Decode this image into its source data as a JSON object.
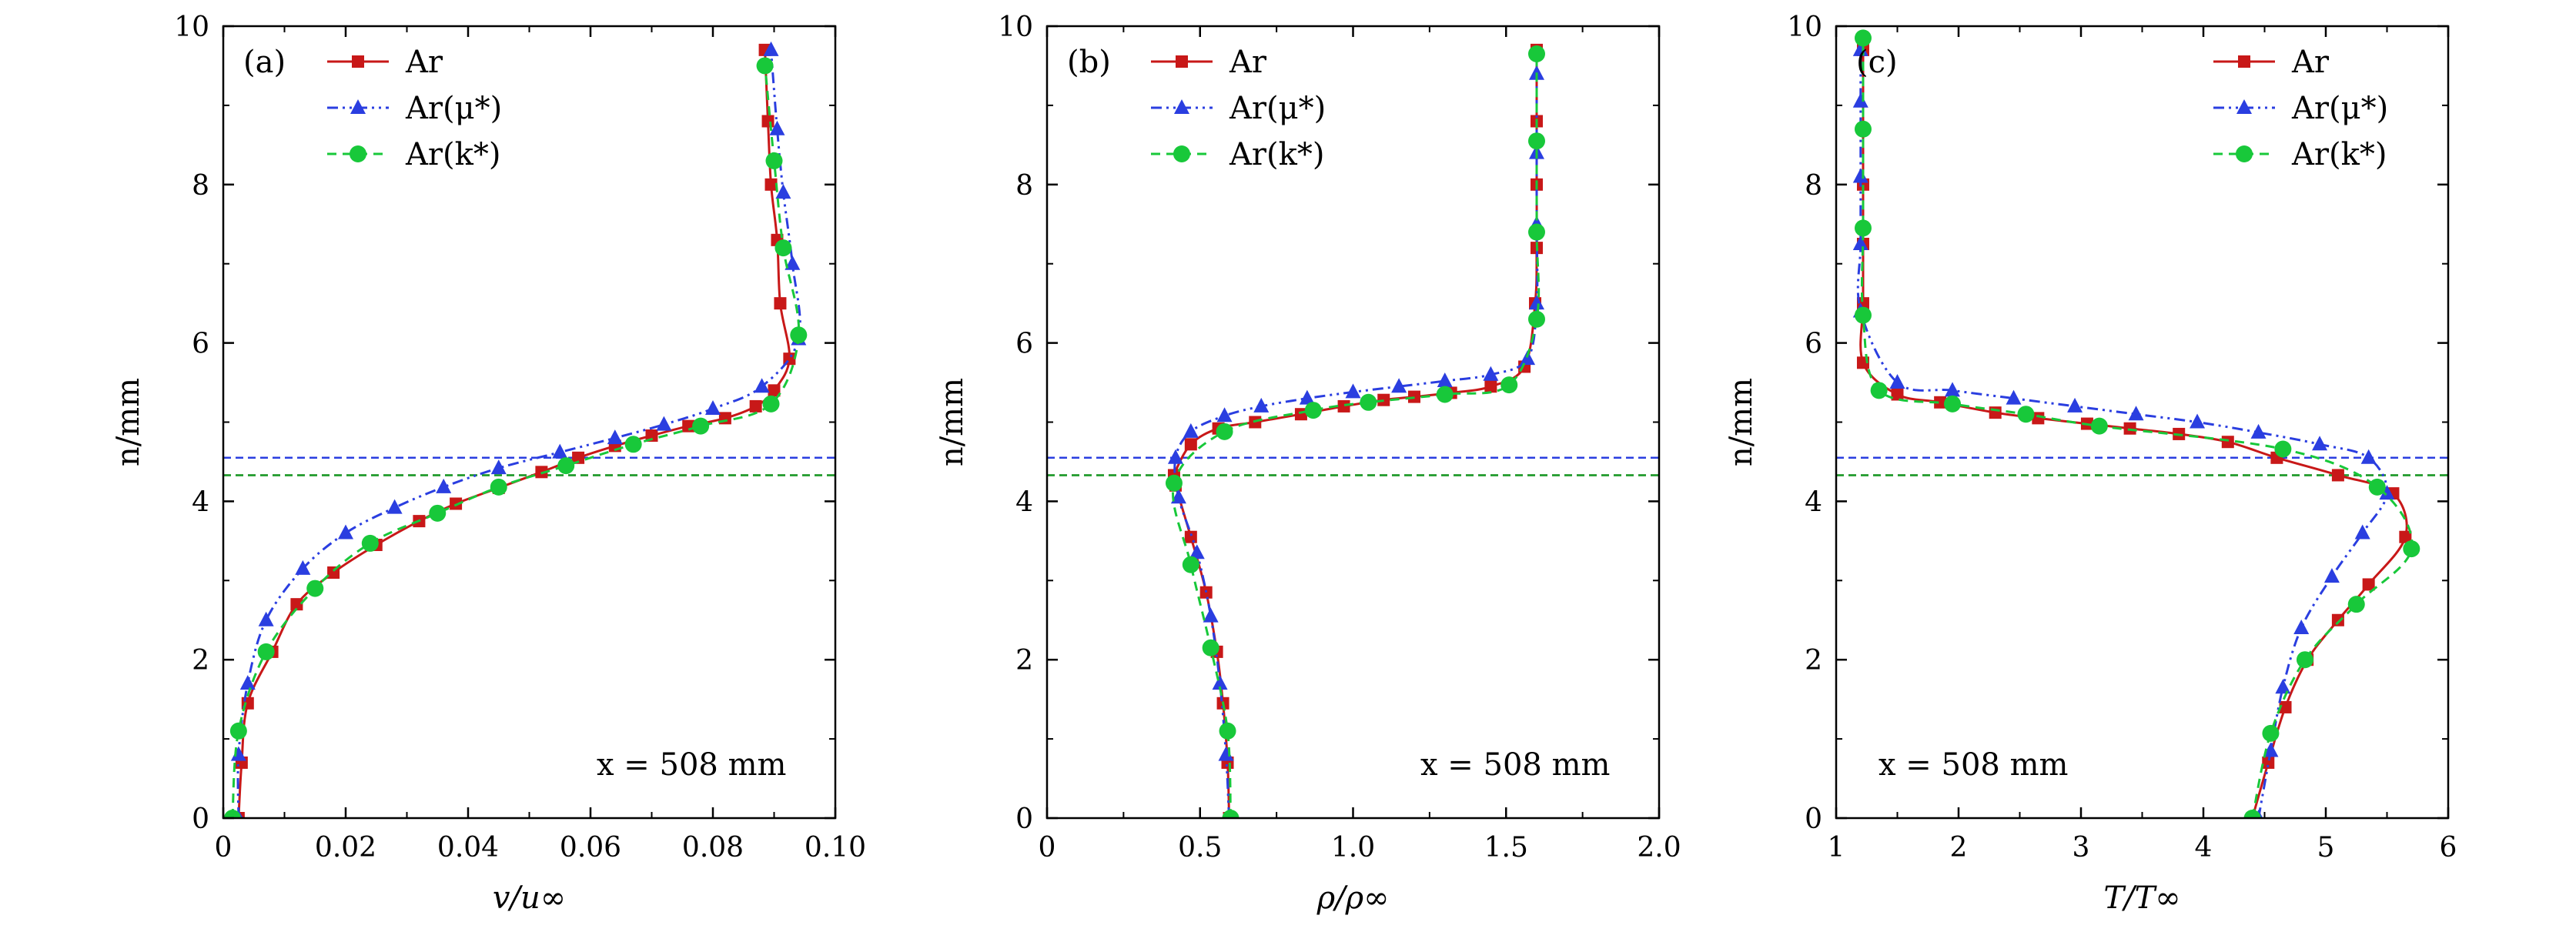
{
  "colors": {
    "ar": "#c81818",
    "ar_mu": "#2a3ee0",
    "ar_k": "#18c83a",
    "shock_ar": "#8a5a00",
    "shock_ar_k": "#18a030",
    "shock_ar_mu": "#2a3ee0"
  },
  "chart_data": [
    {
      "type": "line",
      "panel_label": "(a)",
      "xlabel": "v/u∞",
      "ylabel": "n/mm",
      "xlim": [
        0,
        0.1
      ],
      "ylim": [
        0,
        10
      ],
      "xticks": [
        0,
        0.02,
        0.04,
        0.06,
        0.08,
        0.1
      ],
      "xtick_labels": [
        "0",
        "0.02",
        "0.04",
        "0.06",
        "0.08",
        "0.10"
      ],
      "yticks": [
        0,
        2,
        4,
        6,
        8,
        10
      ],
      "ytick_labels": [
        "0",
        "2",
        "4",
        "6",
        "8",
        "10"
      ],
      "annotation": "x = 508 mm",
      "legend_position": "top-left",
      "shock_lines": [
        {
          "series": "Ar(μ*)",
          "y": 4.55
        },
        {
          "series": "Ar",
          "y": 4.33
        },
        {
          "series": "Ar(k*)",
          "y": 4.33
        }
      ],
      "series": [
        {
          "name": "Ar",
          "marker": "square",
          "line": "solid",
          "x": [
            0.0025,
            0.003,
            0.004,
            0.008,
            0.012,
            0.018,
            0.025,
            0.032,
            0.038,
            0.045,
            0.052,
            0.058,
            0.064,
            0.07,
            0.076,
            0.082,
            0.087,
            0.09,
            0.0925,
            0.091,
            0.0905,
            0.0895,
            0.089,
            0.0885
          ],
          "y": [
            0.0,
            0.7,
            1.45,
            2.1,
            2.7,
            3.1,
            3.45,
            3.75,
            3.97,
            4.17,
            4.37,
            4.55,
            4.7,
            4.83,
            4.95,
            5.05,
            5.2,
            5.4,
            5.8,
            6.5,
            7.3,
            8.0,
            8.8,
            9.7
          ]
        },
        {
          "name": "Ar(μ*)",
          "marker": "triangle",
          "line": "dashdot",
          "x": [
            0.0025,
            0.0025,
            0.004,
            0.007,
            0.013,
            0.02,
            0.028,
            0.036,
            0.045,
            0.055,
            0.064,
            0.072,
            0.08,
            0.088,
            0.094,
            0.093,
            0.0915,
            0.0905,
            0.0895
          ],
          "y": [
            0.0,
            0.8,
            1.7,
            2.5,
            3.15,
            3.6,
            3.92,
            4.18,
            4.42,
            4.62,
            4.8,
            4.97,
            5.17,
            5.45,
            6.05,
            7.0,
            7.9,
            8.7,
            9.7
          ]
        },
        {
          "name": "Ar(k*)",
          "marker": "circle",
          "line": "dashed",
          "x": [
            0.0015,
            0.0025,
            0.007,
            0.015,
            0.024,
            0.035,
            0.045,
            0.056,
            0.067,
            0.078,
            0.0895,
            0.094,
            0.0915,
            0.09,
            0.0885
          ],
          "y": [
            0.0,
            1.1,
            2.1,
            2.9,
            3.47,
            3.85,
            4.18,
            4.45,
            4.72,
            4.95,
            5.23,
            6.1,
            7.2,
            8.3,
            9.5
          ]
        }
      ]
    },
    {
      "type": "line",
      "panel_label": "(b)",
      "xlabel": "ρ/ρ∞",
      "ylabel": "n/mm",
      "xlim": [
        0,
        2.0
      ],
      "ylim": [
        0,
        10
      ],
      "xticks": [
        0,
        0.5,
        1.0,
        1.5,
        2.0
      ],
      "xtick_labels": [
        "0",
        "0.5",
        "1.0",
        "1.5",
        "2.0"
      ],
      "yticks": [
        0,
        2,
        4,
        6,
        8,
        10
      ],
      "ytick_labels": [
        "0",
        "2",
        "4",
        "6",
        "8",
        "10"
      ],
      "annotation": "x = 508 mm",
      "legend_position": "top-left",
      "shock_lines": [
        {
          "series": "Ar(μ*)",
          "y": 4.55
        },
        {
          "series": "Ar",
          "y": 4.33
        },
        {
          "series": "Ar(k*)",
          "y": 4.33
        }
      ],
      "series": [
        {
          "name": "Ar",
          "marker": "square",
          "line": "solid",
          "x": [
            0.595,
            0.59,
            0.575,
            0.555,
            0.52,
            0.47,
            0.42,
            0.415,
            0.47,
            0.56,
            0.68,
            0.83,
            0.97,
            1.1,
            1.2,
            1.32,
            1.45,
            1.56,
            1.595,
            1.6,
            1.6,
            1.6,
            1.6
          ],
          "y": [
            0.0,
            0.7,
            1.45,
            2.1,
            2.85,
            3.55,
            4.2,
            4.33,
            4.72,
            4.92,
            5.0,
            5.1,
            5.2,
            5.28,
            5.32,
            5.37,
            5.45,
            5.7,
            6.5,
            7.2,
            8.0,
            8.8,
            9.7
          ]
        },
        {
          "name": "Ar(μ*)",
          "marker": "triangle",
          "line": "dashdot",
          "x": [
            0.595,
            0.585,
            0.565,
            0.535,
            0.49,
            0.43,
            0.42,
            0.47,
            0.58,
            0.7,
            0.85,
            1.0,
            1.15,
            1.3,
            1.45,
            1.57,
            1.6,
            1.6,
            1.6,
            1.6
          ],
          "y": [
            0.0,
            0.8,
            1.7,
            2.55,
            3.35,
            4.05,
            4.55,
            4.88,
            5.08,
            5.2,
            5.3,
            5.38,
            5.45,
            5.52,
            5.6,
            5.8,
            6.5,
            7.5,
            8.4,
            9.4
          ]
        },
        {
          "name": "Ar(k*)",
          "marker": "circle",
          "line": "dashed",
          "x": [
            0.6,
            0.59,
            0.535,
            0.47,
            0.415,
            0.58,
            0.87,
            1.05,
            1.3,
            1.51,
            1.6,
            1.6,
            1.6,
            1.6
          ],
          "y": [
            0.0,
            1.1,
            2.15,
            3.2,
            4.23,
            4.88,
            5.15,
            5.25,
            5.35,
            5.47,
            6.3,
            7.4,
            8.55,
            9.65
          ]
        }
      ]
    },
    {
      "type": "line",
      "panel_label": "(c)",
      "xlabel": "T/T∞",
      "ylabel": "n/mm",
      "xlim": [
        1,
        6
      ],
      "ylim": [
        0,
        10
      ],
      "xticks": [
        1,
        2,
        3,
        4,
        5,
        6
      ],
      "xtick_labels": [
        "1",
        "2",
        "3",
        "4",
        "5",
        "6"
      ],
      "yticks": [
        0,
        2,
        4,
        6,
        8,
        10
      ],
      "ytick_labels": [
        "0",
        "2",
        "4",
        "6",
        "8",
        "10"
      ],
      "annotation": "x = 508 mm",
      "legend_position": "top-right",
      "shock_lines": [
        {
          "series": "Ar(μ*)",
          "y": 4.55
        },
        {
          "series": "Ar",
          "y": 4.33
        },
        {
          "series": "Ar(k*)",
          "y": 4.33
        }
      ],
      "series": [
        {
          "name": "Ar",
          "marker": "square",
          "line": "solid",
          "x": [
            4.4,
            4.53,
            4.67,
            4.85,
            5.1,
            5.35,
            5.65,
            5.55,
            5.1,
            4.6,
            4.2,
            3.8,
            3.4,
            3.05,
            2.65,
            2.3,
            1.85,
            1.5,
            1.22,
            1.22,
            1.22,
            1.22,
            1.22
          ],
          "y": [
            0.0,
            0.7,
            1.4,
            2.0,
            2.5,
            2.95,
            3.55,
            4.1,
            4.33,
            4.55,
            4.75,
            4.85,
            4.92,
            4.98,
            5.05,
            5.12,
            5.25,
            5.35,
            5.75,
            6.5,
            7.25,
            8.0,
            9.7
          ]
        },
        {
          "name": "Ar(μ*)",
          "marker": "triangle",
          "line": "dashdot",
          "x": [
            4.45,
            4.55,
            4.65,
            4.8,
            5.05,
            5.3,
            5.5,
            5.35,
            4.95,
            4.45,
            3.95,
            3.45,
            2.95,
            2.45,
            1.95,
            1.5,
            1.2,
            1.2,
            1.2,
            1.2,
            1.2
          ],
          "y": [
            0.0,
            0.85,
            1.65,
            2.4,
            3.05,
            3.6,
            4.1,
            4.55,
            4.72,
            4.87,
            5.0,
            5.1,
            5.2,
            5.3,
            5.4,
            5.5,
            6.4,
            7.25,
            8.1,
            9.05,
            9.7
          ]
        },
        {
          "name": "Ar(k*)",
          "marker": "circle",
          "line": "dashed",
          "x": [
            4.4,
            4.55,
            4.83,
            5.25,
            5.7,
            5.42,
            4.65,
            3.15,
            2.55,
            1.95,
            1.35,
            1.22,
            1.22,
            1.22,
            1.22
          ],
          "y": [
            0.0,
            1.07,
            2.0,
            2.7,
            3.4,
            4.18,
            4.66,
            4.95,
            5.1,
            5.23,
            5.4,
            6.35,
            7.45,
            8.7,
            9.85
          ]
        }
      ]
    }
  ]
}
